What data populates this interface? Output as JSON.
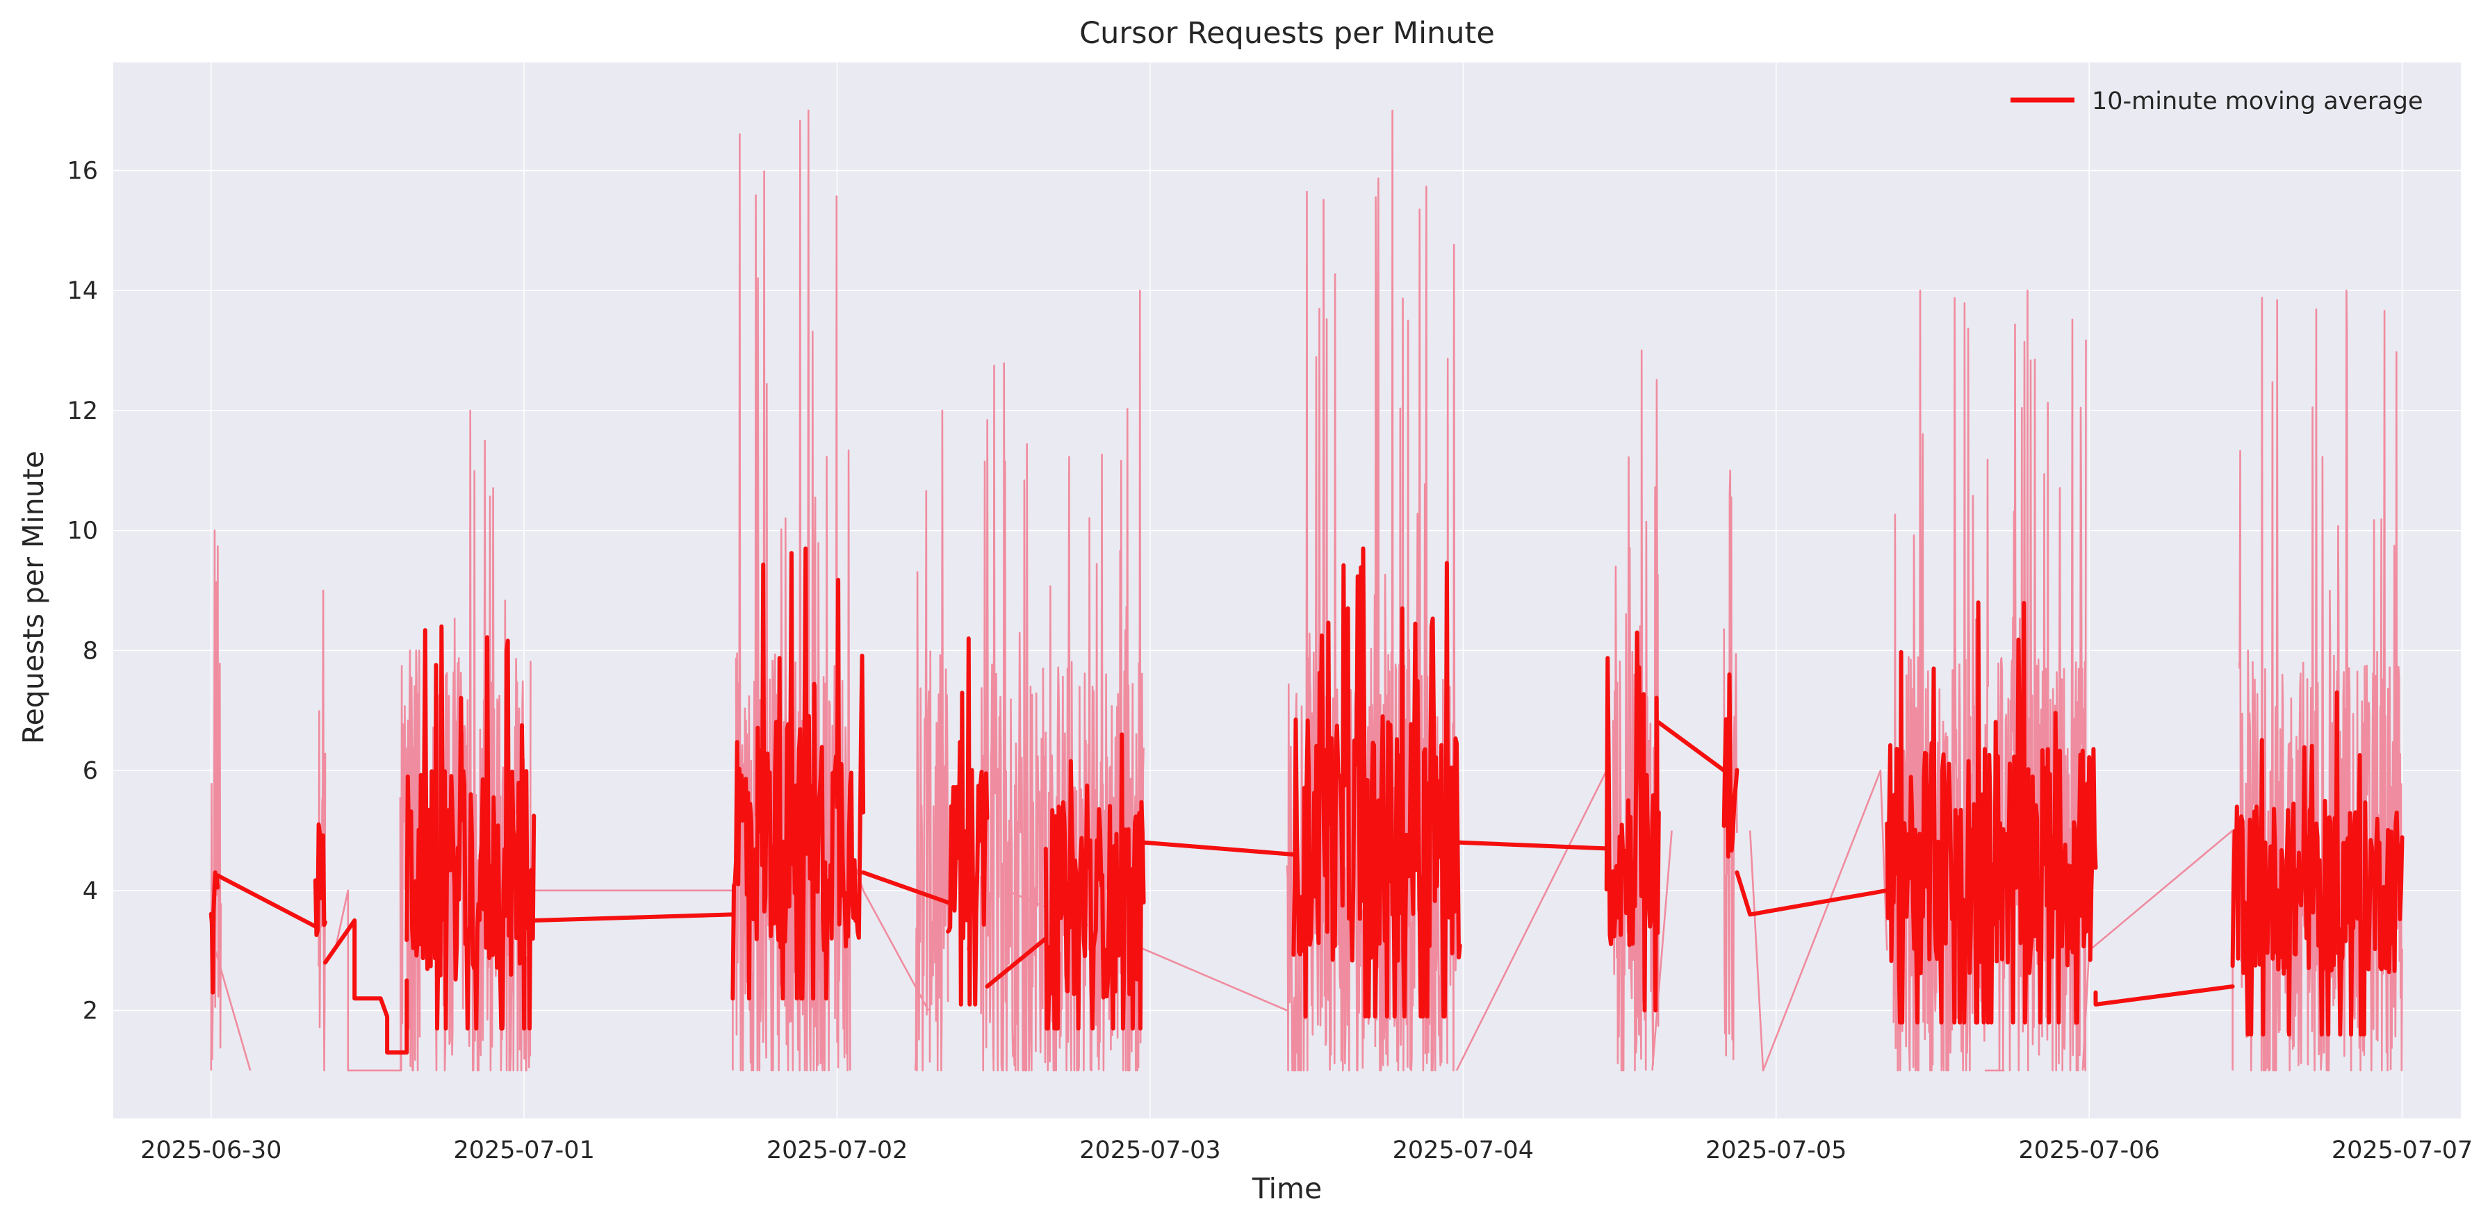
{
  "chart_data": {
    "type": "line",
    "title": "Cursor Requests per Minute",
    "xlabel": "Time",
    "ylabel": "Requests per Minute",
    "x_axis_type": "date",
    "xlim": [
      "2025-06-29T16:30",
      "2025-07-07T04:30"
    ],
    "ylim": [
      0.2,
      17.8
    ],
    "x_ticks": [
      "2025-06-30",
      "2025-07-01",
      "2025-07-02",
      "2025-07-03",
      "2025-07-04",
      "2025-07-05",
      "2025-07-06",
      "2025-07-07"
    ],
    "y_ticks": [
      2,
      4,
      6,
      8,
      10,
      12,
      14,
      16
    ],
    "grid": true,
    "background_color": "#EAEAF2",
    "legend": {
      "placement": "top-right",
      "entries": [
        "10-minute moving average"
      ]
    },
    "series": [
      {
        "key": "raw",
        "color": "#F08C9F",
        "style": "thin",
        "bursts": [
          {
            "start": "2025-06-30T00:00",
            "end": "2025-06-30T00:45",
            "peak": 10
          },
          {
            "start": "2025-06-30T08:15",
            "end": "2025-06-30T08:45",
            "peak": 9
          },
          {
            "start": "2025-06-30T14:30",
            "end": "2025-06-30T16:00",
            "peak": 8
          },
          {
            "start": "2025-06-30T17:00",
            "end": "2025-07-01T00:30",
            "peak": 12
          },
          {
            "start": "2025-07-01T16:15",
            "end": "2025-07-02T01:00",
            "peak": 17
          },
          {
            "start": "2025-07-02T06:00",
            "end": "2025-07-02T08:30",
            "peak": 12
          },
          {
            "start": "2025-07-02T11:00",
            "end": "2025-07-02T23:30",
            "peak": 14
          },
          {
            "start": "2025-07-03T10:30",
            "end": "2025-07-03T23:30",
            "peak": 17
          },
          {
            "start": "2025-07-04T11:30",
            "end": "2025-07-04T15:00",
            "peak": 13
          },
          {
            "start": "2025-07-04T20:00",
            "end": "2025-07-04T21:00",
            "peak": 11
          },
          {
            "start": "2025-07-05T09:00",
            "end": "2025-07-05T16:15",
            "peak": 14
          },
          {
            "start": "2025-07-05T17:00",
            "end": "2025-07-05T23:45",
            "peak": 14
          },
          {
            "start": "2025-07-06T11:30",
            "end": "2025-07-07T00:00",
            "peak": 14
          }
        ],
        "connectors": [
          [
            [
              "2025-06-30T00:20",
              3
            ],
            [
              "2025-06-30T03:00",
              1
            ]
          ],
          [
            [
              "2025-06-30T09:30",
              3
            ],
            [
              "2025-06-30T10:30",
              4
            ],
            [
              "2025-06-30T10:30",
              1
            ],
            [
              "2025-06-30T14:30",
              1
            ]
          ],
          [
            [
              "2025-07-01T00:30",
              4
            ],
            [
              "2025-07-01T16:00",
              4
            ],
            [
              "2025-07-01T16:00",
              1
            ]
          ],
          [
            [
              "2025-07-02T00:30",
              5
            ],
            [
              "2025-07-02T02:00",
              4
            ],
            [
              "2025-07-02T07:00",
              2
            ]
          ],
          [
            [
              "2025-07-02T10:00",
              3
            ],
            [
              "2025-07-02T11:00",
              5
            ]
          ],
          [
            [
              "2025-07-02T13:00",
              4
            ],
            [
              "2025-07-03T10:30",
              2
            ]
          ],
          [
            [
              "2025-07-03T23:30",
              1
            ],
            [
              "2025-07-04T11:00",
              6
            ]
          ],
          [
            [
              "2025-07-04T14:30",
              1
            ],
            [
              "2025-07-04T16:00",
              5
            ]
          ],
          [
            [
              "2025-07-04T22:00",
              5
            ],
            [
              "2025-07-04T23:00",
              1
            ],
            [
              "2025-07-05T08:00",
              6
            ],
            [
              "2025-07-05T08:30",
              3
            ]
          ],
          [
            [
              "2025-07-05T16:00",
              1
            ],
            [
              "2025-07-05T17:30",
              1
            ]
          ],
          [
            [
              "2025-07-05T23:30",
              1
            ],
            [
              "2025-07-06T00:00",
              3
            ],
            [
              "2025-07-06T11:00",
              5
            ],
            [
              "2025-07-06T11:00",
              1
            ]
          ]
        ]
      },
      {
        "key": "ma",
        "name": "10-minute moving average",
        "color": "#F50F0F",
        "style": "bold",
        "segments": [
          {
            "start": "2025-06-30T00:00",
            "end": "2025-06-30T00:30",
            "min": 2.3,
            "max": 4.3,
            "lo": 2.6,
            "hi": 4.1
          },
          [
            [
              "2025-06-30T00:30",
              4.25
            ],
            [
              "2025-06-30T08:00",
              3.4
            ]
          ],
          {
            "start": "2025-06-30T08:00",
            "end": "2025-06-30T08:45",
            "min": 2.8,
            "max": 5.1,
            "lo": 3.1,
            "hi": 4.8
          },
          [
            [
              "2025-06-30T08:45",
              2.8
            ],
            [
              "2025-06-30T11:00",
              3.5
            ],
            [
              "2025-06-30T11:00",
              2.2
            ],
            [
              "2025-06-30T13:00",
              2.2
            ],
            [
              "2025-06-30T13:30",
              1.9
            ],
            [
              "2025-06-30T13:30",
              1.3
            ],
            [
              "2025-06-30T15:00",
              1.3
            ],
            [
              "2025-06-30T15:00",
              2.5
            ]
          ],
          {
            "start": "2025-06-30T15:00",
            "end": "2025-07-01T00:45",
            "min": 1.7,
            "max": 8.4,
            "lo": 2.5,
            "hi": 6.0
          },
          [
            [
              "2025-07-01T00:45",
              3.5
            ],
            [
              "2025-07-01T16:00",
              3.6
            ]
          ],
          {
            "start": "2025-07-01T16:00",
            "end": "2025-07-02T02:00",
            "min": 2.2,
            "max": 9.7,
            "lo": 3.0,
            "hi": 7.0
          },
          [
            [
              "2025-07-02T02:00",
              4.3
            ],
            [
              "2025-07-02T08:30",
              3.8
            ]
          ],
          {
            "start": "2025-07-02T08:30",
            "end": "2025-07-02T11:30",
            "min": 2.1,
            "max": 8.2,
            "lo": 3.0,
            "hi": 6.0
          },
          [
            [
              "2025-07-02T11:30",
              2.4
            ],
            [
              "2025-07-02T16:00",
              3.2
            ]
          ],
          {
            "start": "2025-07-02T16:00",
            "end": "2025-07-02T23:30",
            "min": 1.7,
            "max": 6.6,
            "lo": 2.2,
            "hi": 5.5
          },
          [
            [
              "2025-07-02T23:30",
              4.8
            ],
            [
              "2025-07-03T11:00",
              4.6
            ]
          ],
          {
            "start": "2025-07-03T11:00",
            "end": "2025-07-03T23:45",
            "min": 1.9,
            "max": 9.7,
            "lo": 2.8,
            "hi": 7.0
          },
          [
            [
              "2025-07-03T23:45",
              4.8
            ],
            [
              "2025-07-04T11:00",
              4.7
            ]
          ],
          {
            "start": "2025-07-04T11:00",
            "end": "2025-07-04T15:00",
            "min": 2.0,
            "max": 8.3,
            "lo": 3.0,
            "hi": 6.0
          },
          [
            [
              "2025-07-04T15:00",
              6.8
            ],
            [
              "2025-07-04T20:00",
              6.0
            ]
          ],
          {
            "start": "2025-07-04T20:00",
            "end": "2025-07-04T21:00",
            "min": 3.8,
            "max": 7.6,
            "lo": 4.5,
            "hi": 6.5
          },
          [
            [
              "2025-07-04T21:00",
              4.3
            ],
            [
              "2025-07-04T22:00",
              3.6
            ],
            [
              "2025-07-05T08:30",
              4.0
            ]
          ],
          {
            "start": "2025-07-05T08:30",
            "end": "2025-07-06T00:30",
            "min": 1.8,
            "max": 8.8,
            "lo": 2.6,
            "hi": 6.5
          },
          [
            [
              "2025-07-06T00:30",
              2.3
            ],
            [
              "2025-07-06T00:30",
              2.1
            ],
            [
              "2025-07-06T11:00",
              2.4
            ]
          ],
          {
            "start": "2025-07-06T11:00",
            "end": "2025-07-07T00:00",
            "min": 1.6,
            "max": 7.3,
            "lo": 2.6,
            "hi": 5.5
          }
        ]
      }
    ]
  }
}
